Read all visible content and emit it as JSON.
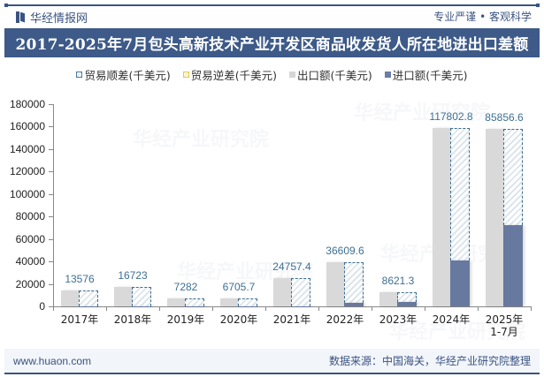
{
  "header": {
    "brand": "华经情报网",
    "slogan": "专业严谨 • 客观科学",
    "title": "2017-2025年7月包头高新技术产业开发区商品收发货人所在地进出口差额"
  },
  "legend": [
    {
      "label": "贸易顺差(千美元)",
      "swatch": "surplus"
    },
    {
      "label": "贸易逆差(千美元)",
      "swatch": "deficit"
    },
    {
      "label": "出口额(千美元)",
      "swatch": "export"
    },
    {
      "label": "进口额(千美元)",
      "swatch": "import"
    }
  ],
  "footer": {
    "website": "www.huaon.com",
    "source": "数据来源：中国海关，华经产业研究院整理"
  },
  "watermark": "华经产业研究院",
  "colors": {
    "title_bg": "#3d5a88",
    "export": "#d9d9d9",
    "import": "#67799f",
    "surplus_border": "#3f6d8f",
    "label": "#3e6f93"
  },
  "chart_data": {
    "type": "bar",
    "title": "2017-2025年7月包头高新技术产业开发区商品收发货人所在地进出口差额",
    "xlabel": "",
    "ylabel": "",
    "ylim": [
      0,
      180000
    ],
    "yticks": [
      0,
      20000,
      40000,
      60000,
      80000,
      100000,
      120000,
      140000,
      160000,
      180000
    ],
    "categories": [
      "2017年",
      "2018年",
      "2019年",
      "2020年",
      "2021年",
      "2022年",
      "2023年",
      "2024年",
      "2025年\n1-7月"
    ],
    "series": [
      {
        "name": "贸易顺差(千美元)",
        "values": [
          13576,
          16723,
          7282,
          6705.7,
          24757.4,
          36609.6,
          8621.3,
          117802.8,
          85856.6
        ]
      },
      {
        "name": "贸易逆差(千美元)",
        "values": [
          0,
          0,
          0,
          0,
          0,
          0,
          0,
          0,
          0
        ]
      },
      {
        "name": "出口额(千美元)",
        "values": [
          13800,
          16900,
          7400,
          6900,
          24900,
          39500,
          12800,
          159000,
          158000
        ]
      },
      {
        "name": "进口额(千美元)",
        "values": [
          224,
          177,
          118,
          194,
          142,
          2890,
          4179,
          41197,
          72143
        ]
      }
    ],
    "data_labels": [
      "13576",
      "16723",
      "7282",
      "6705.7",
      "24757.4",
      "36609.6",
      "8621.3",
      "117802.8",
      "85856.6"
    ],
    "legend_position": "top",
    "grid": false
  }
}
